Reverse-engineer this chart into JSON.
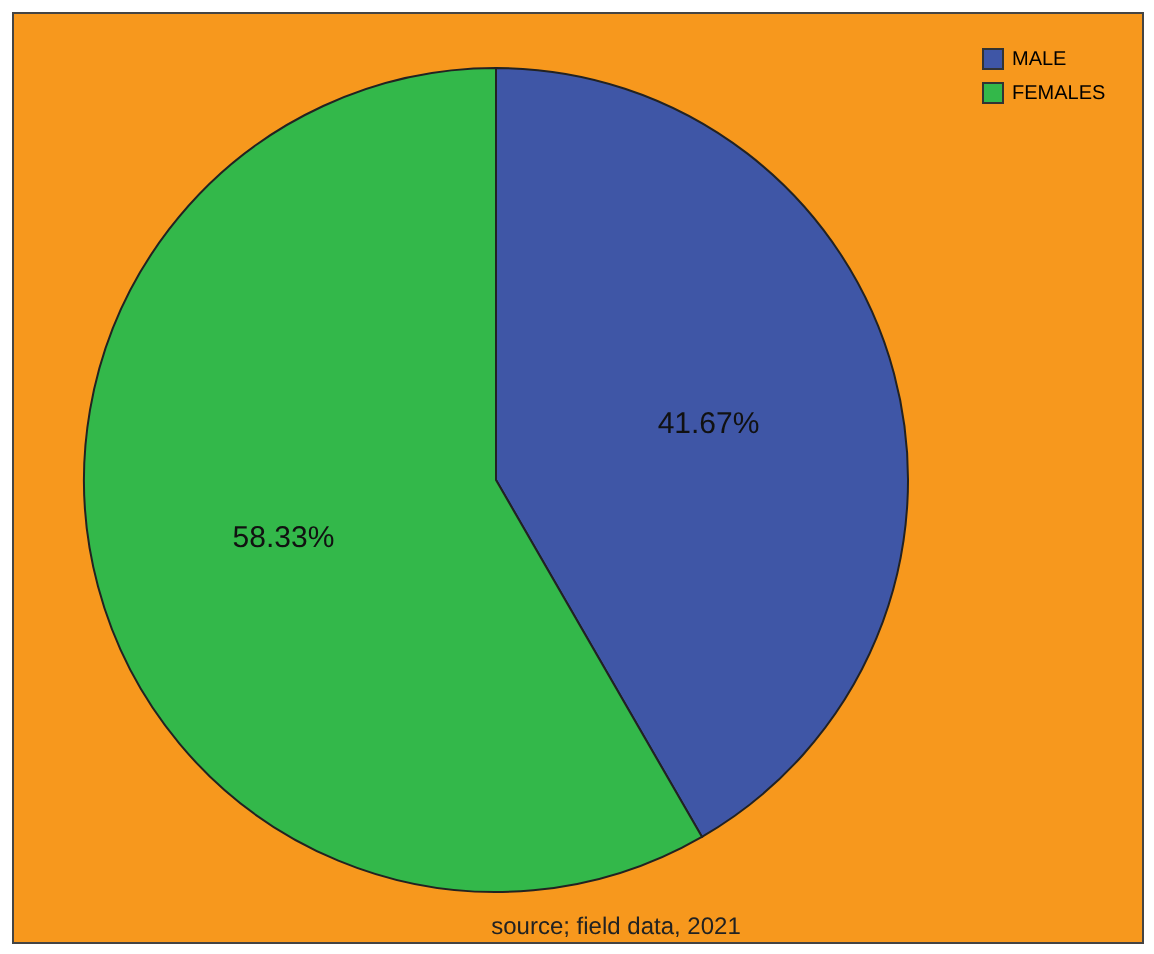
{
  "chart_data": {
    "type": "pie",
    "categories": [
      "MALE",
      "FEMALES"
    ],
    "values": [
      41.67,
      58.33
    ],
    "colors": [
      "#3f56a6",
      "#33b84a"
    ],
    "value_labels": [
      "41.67%",
      "58.33%"
    ],
    "legend": "top right",
    "annotations": [
      "source; field data, 2021"
    ]
  }
}
